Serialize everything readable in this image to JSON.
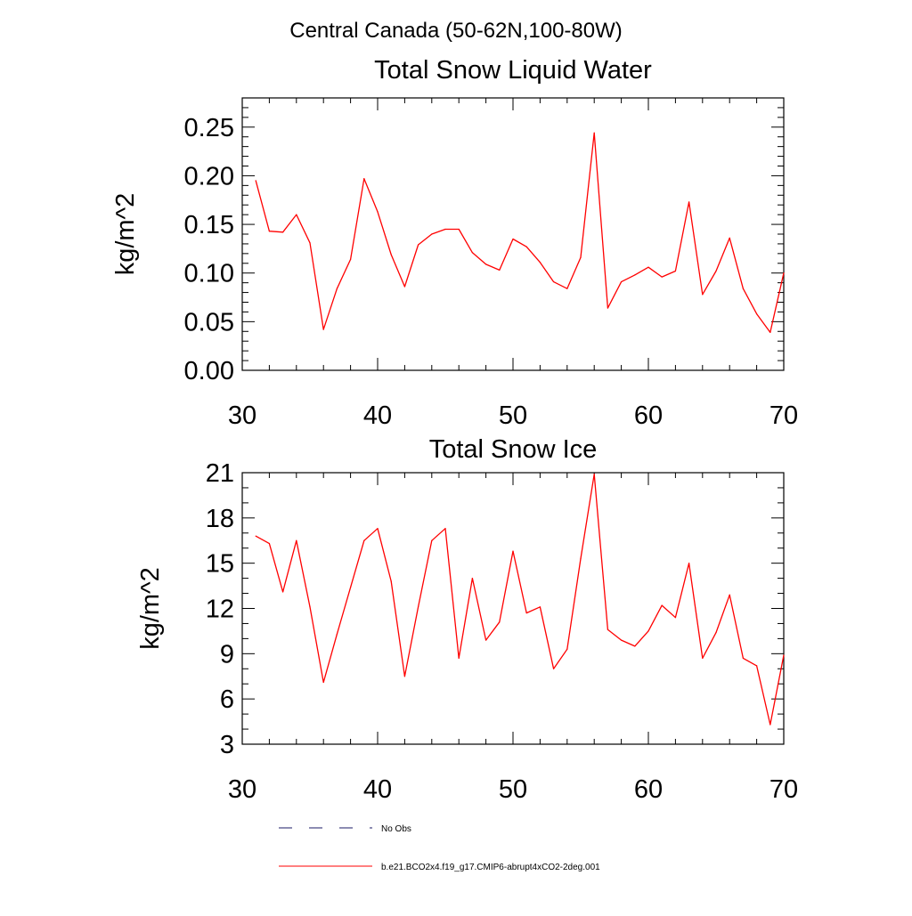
{
  "page_title": "Central Canada (50-62N,100-80W)",
  "legend": {
    "items": [
      {
        "label": "No Obs",
        "style": "dashed",
        "color": "#1a1a66"
      },
      {
        "label": "b.e21.BCO2x4.f19_g17.CMIP6-abrupt4xCO2-2deg.001",
        "style": "solid",
        "color": "#ff0000"
      }
    ]
  },
  "chart_data": [
    {
      "type": "line",
      "title": "Total Snow Liquid Water",
      "xlabel": "",
      "ylabel": "kg/m^2",
      "xlim": [
        30,
        70
      ],
      "ylim": [
        0,
        0.28
      ],
      "xticks": [
        "30",
        "40",
        "50",
        "60",
        "70"
      ],
      "yticks": [
        "0.00",
        "0.05",
        "0.10",
        "0.15",
        "0.20",
        "0.25"
      ],
      "grid": false,
      "series": [
        {
          "color": "#ff0000",
          "x": [
            31,
            32,
            33,
            34,
            35,
            36,
            37,
            38,
            39,
            40,
            41,
            42,
            43,
            44,
            45,
            46,
            47,
            48,
            49,
            50,
            51,
            52,
            53,
            54,
            55,
            56,
            57,
            58,
            59,
            60,
            61,
            62,
            63,
            64,
            65,
            66,
            67,
            68,
            69,
            70
          ],
          "values": [
            0.195,
            0.143,
            0.142,
            0.16,
            0.131,
            0.042,
            0.084,
            0.114,
            0.197,
            0.163,
            0.119,
            0.086,
            0.129,
            0.14,
            0.145,
            0.145,
            0.121,
            0.109,
            0.103,
            0.135,
            0.127,
            0.111,
            0.091,
            0.084,
            0.116,
            0.244,
            0.064,
            0.091,
            0.098,
            0.106,
            0.096,
            0.102,
            0.173,
            0.078,
            0.102,
            0.136,
            0.084,
            0.058,
            0.039,
            0.1
          ]
        }
      ]
    },
    {
      "type": "line",
      "title": "Total Snow Ice",
      "xlabel": "",
      "ylabel": "kg/m^2",
      "xlim": [
        30,
        70
      ],
      "ylim": [
        3,
        21
      ],
      "xticks": [
        "30",
        "40",
        "50",
        "60",
        "70"
      ],
      "yticks": [
        "3",
        "6",
        "9",
        "12",
        "15",
        "18",
        "21"
      ],
      "grid": false,
      "series": [
        {
          "color": "#ff0000",
          "x": [
            31,
            32,
            33,
            34,
            35,
            36,
            37,
            38,
            39,
            40,
            41,
            42,
            43,
            44,
            45,
            46,
            47,
            48,
            49,
            50,
            51,
            52,
            53,
            54,
            55,
            56,
            57,
            58,
            59,
            60,
            61,
            62,
            63,
            64,
            65,
            66,
            67,
            68,
            69,
            70
          ],
          "values": [
            16.8,
            16.3,
            13.1,
            16.5,
            12.1,
            7.1,
            10.3,
            13.4,
            16.5,
            17.3,
            13.8,
            7.5,
            12.1,
            16.5,
            17.3,
            8.7,
            14.0,
            9.9,
            11.1,
            15.8,
            11.7,
            12.1,
            8.0,
            9.3,
            15.3,
            20.9,
            10.6,
            9.9,
            9.5,
            10.5,
            12.2,
            11.4,
            15.0,
            8.7,
            10.4,
            12.9,
            8.7,
            8.2,
            4.3,
            8.9
          ]
        }
      ]
    }
  ]
}
